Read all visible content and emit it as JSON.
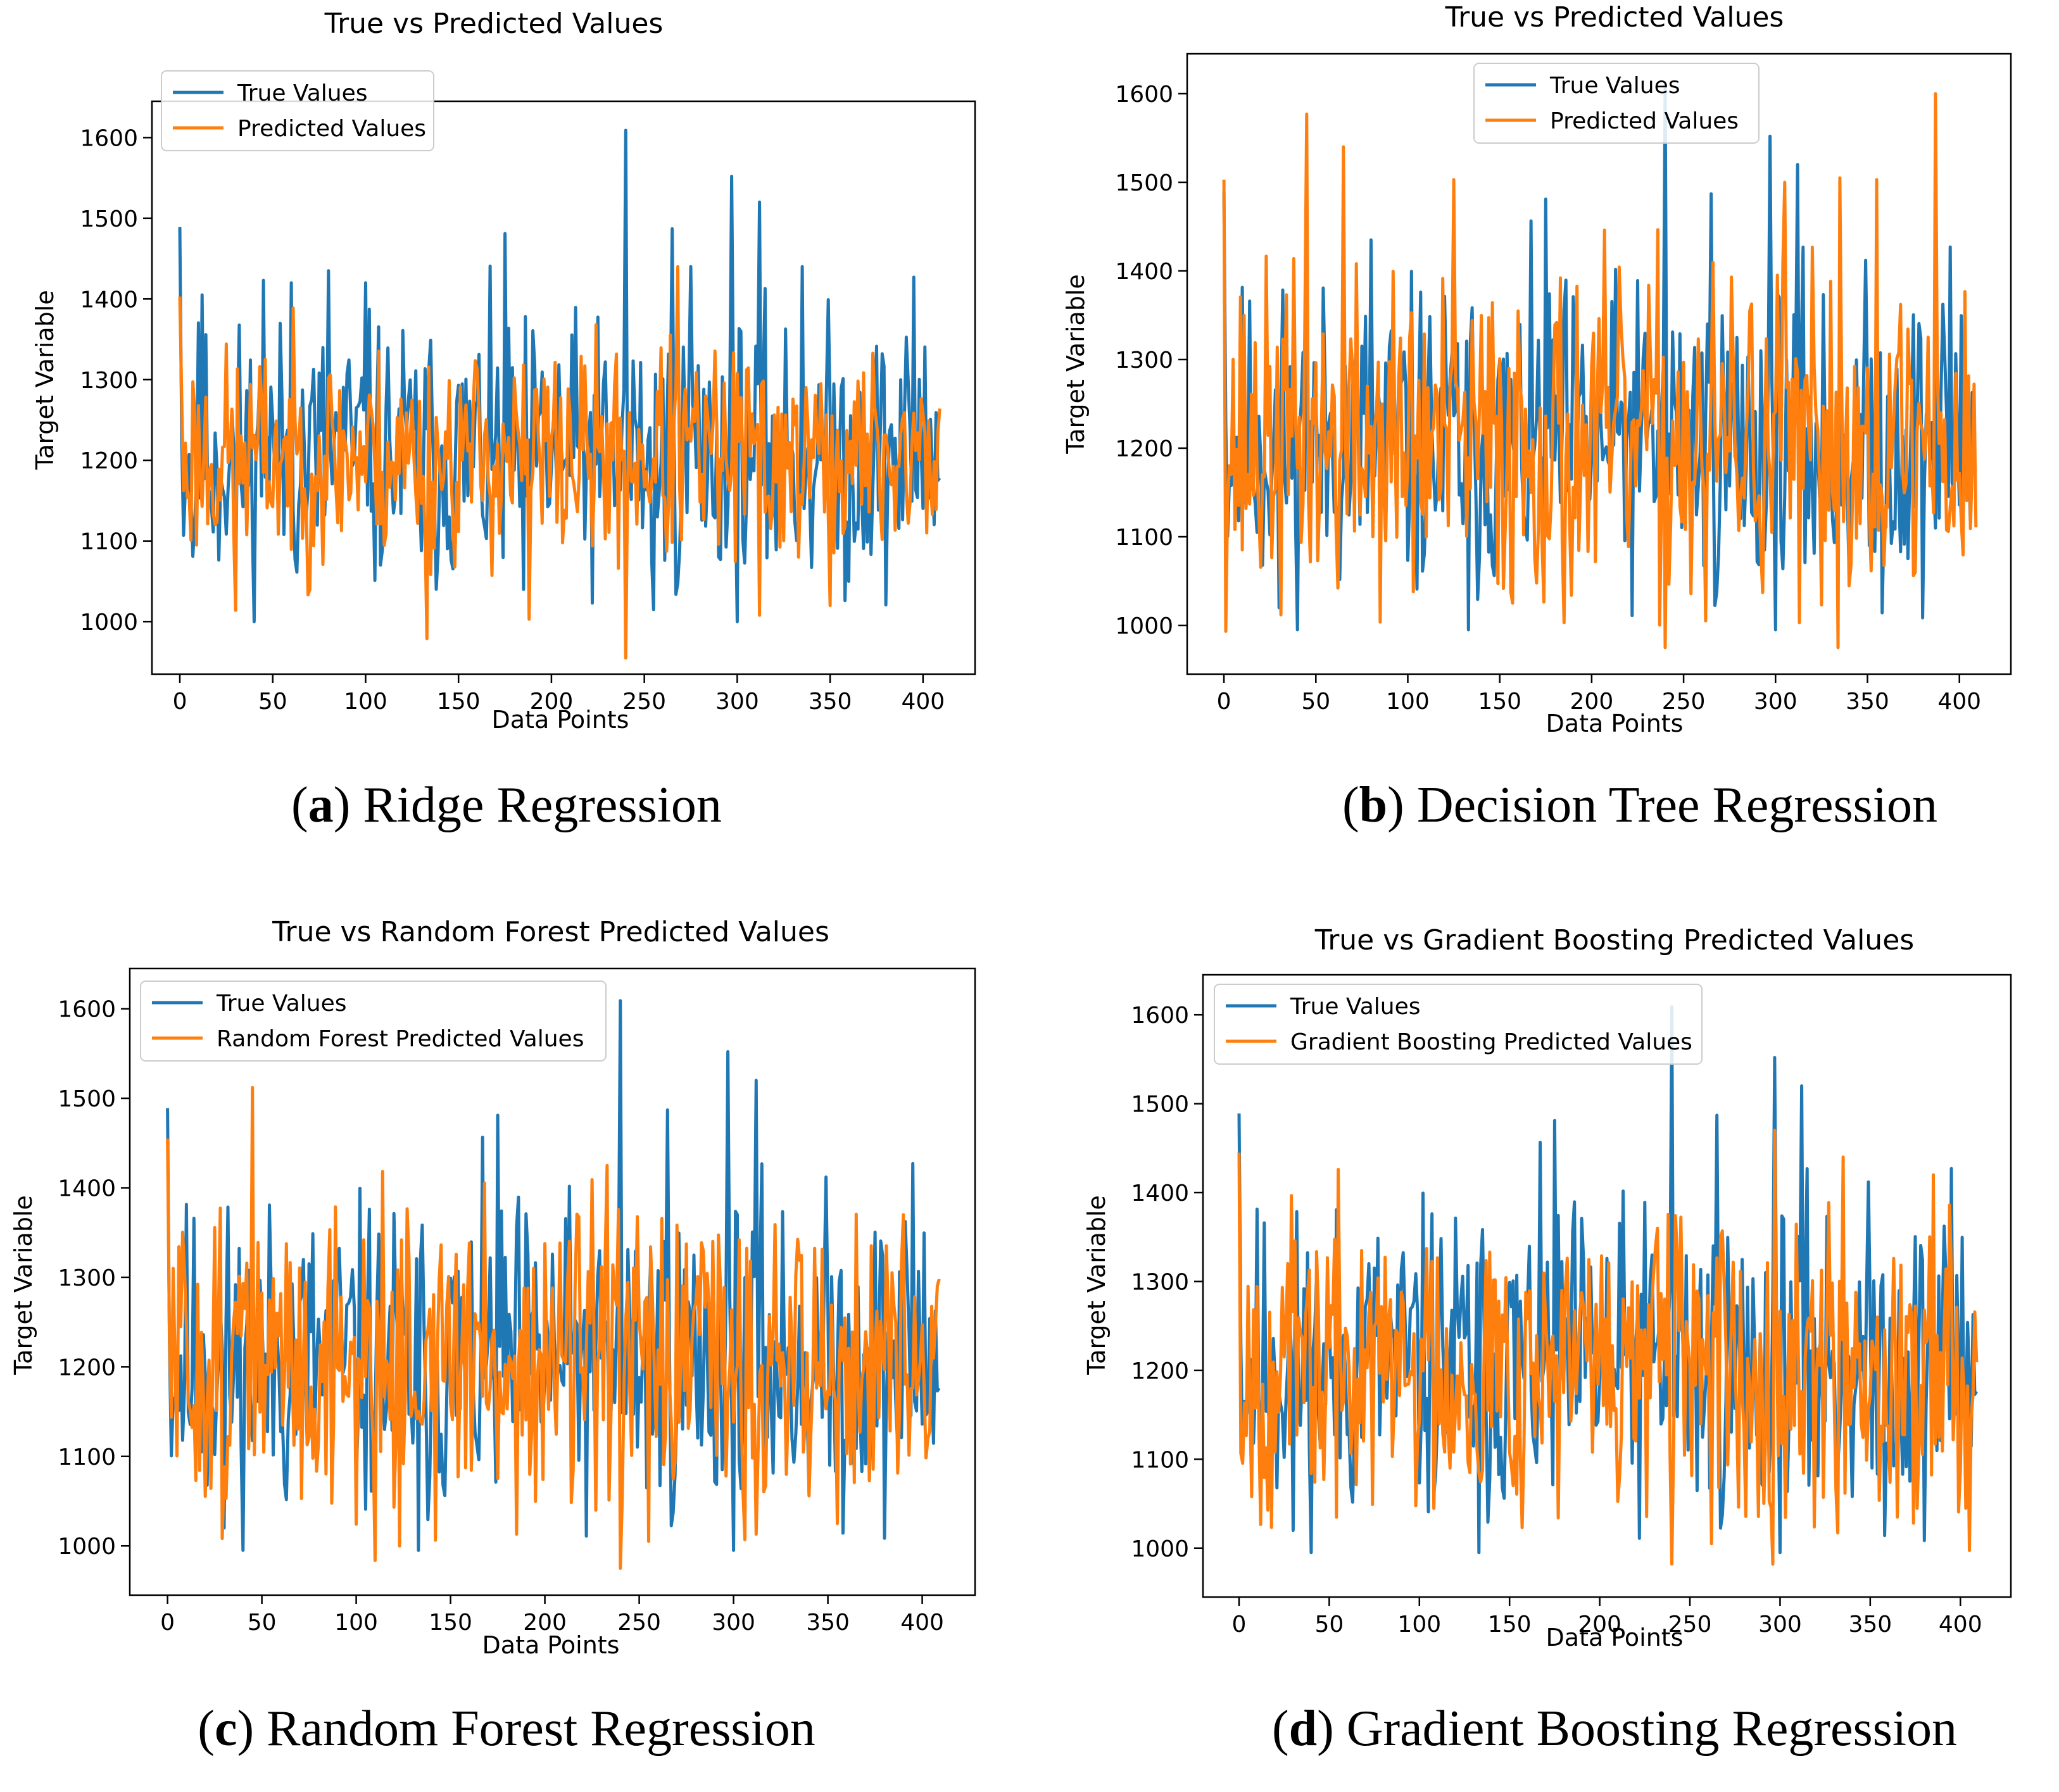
{
  "chart_data": [
    {
      "type": "line",
      "panel": "a",
      "caption_letter": "a",
      "caption_text": "Ridge Regression",
      "title": "True vs Predicted Values",
      "xlabel": "Data Points",
      "ylabel": "Target Variable",
      "xlim": [
        -15,
        428
      ],
      "ylim": [
        935,
        1645
      ],
      "xticks": [
        0,
        50,
        100,
        150,
        200,
        250,
        300,
        350,
        400
      ],
      "yticks": [
        1000,
        1100,
        1200,
        1300,
        1400,
        1500,
        1600
      ],
      "legend": [
        "True Values",
        "Predicted Values"
      ],
      "legend_position": "top-left",
      "series": [
        {
          "name": "True Values",
          "color": "#1f77b4",
          "n": 410,
          "min": 1000,
          "max": 1609,
          "mean": 1205,
          "spread": 75,
          "seed": 11,
          "spikes": [
            [
              0,
              1489
            ],
            [
              7,
              1081
            ],
            [
              12,
              1405
            ],
            [
              30,
              1030
            ],
            [
              45,
              1423
            ],
            [
              60,
              1420
            ],
            [
              80,
              1435
            ],
            [
              100,
              1420
            ],
            [
              130,
              1088
            ],
            [
              175,
              1481
            ],
            [
              185,
              1040
            ],
            [
              240,
              1609
            ],
            [
              255,
              1015
            ],
            [
              265,
              1487
            ],
            [
              275,
              1440
            ],
            [
              297,
              1552
            ],
            [
              312,
              1520
            ],
            [
              335,
              1440
            ],
            [
              360,
              1050
            ],
            [
              395,
              1427
            ]
          ]
        },
        {
          "name": "Predicted Values",
          "color": "#ff7f0e",
          "n": 410,
          "min": 955,
          "max": 1440,
          "mean": 1205,
          "spread": 60,
          "seed": 23,
          "spikes": [
            [
              0,
              1403
            ],
            [
              30,
              1014
            ],
            [
              70,
              1040
            ],
            [
              133,
              979
            ],
            [
              188,
              1003
            ],
            [
              240,
              955
            ],
            [
              268,
              1440
            ],
            [
              312,
              1008
            ],
            [
              350,
              1020
            ]
          ]
        }
      ]
    },
    {
      "type": "line",
      "panel": "b",
      "caption_letter": "b",
      "caption_text": "Decision Tree Regression",
      "title": "True vs Predicted Values",
      "xlabel": "Data Points",
      "ylabel": "Target Variable",
      "xlim": [
        -20,
        428
      ],
      "ylim": [
        945,
        1645
      ],
      "xticks": [
        0,
        50,
        100,
        150,
        200,
        250,
        300,
        350,
        400
      ],
      "yticks": [
        1000,
        1100,
        1200,
        1300,
        1400,
        1500,
        1600
      ],
      "legend": [
        "True Values",
        "Predicted Values"
      ],
      "legend_position": "top-center",
      "series": [
        {
          "name": "True Values",
          "color": "#1f77b4",
          "n": 410,
          "min": 995,
          "max": 1609,
          "mean": 1205,
          "spread": 80,
          "seed": 11,
          "spikes": [
            [
              0,
              1489
            ],
            [
              30,
              1020
            ],
            [
              45,
              1425
            ],
            [
              80,
              1435
            ],
            [
              133,
              995
            ],
            [
              175,
              1481
            ],
            [
              240,
              1609
            ],
            [
              265,
              1487
            ],
            [
              297,
              1552
            ],
            [
              312,
              1520
            ],
            [
              395,
              1427
            ]
          ]
        },
        {
          "name": "Predicted Values",
          "color": "#ff7f0e",
          "n": 410,
          "min": 975,
          "max": 1600,
          "mean": 1205,
          "spread": 85,
          "seed": 37,
          "spikes": [
            [
              0,
              1503
            ],
            [
              45,
              1577
            ],
            [
              65,
              1540
            ],
            [
              125,
              1503
            ],
            [
              185,
              1003
            ],
            [
              240,
              975
            ],
            [
              262,
              1005
            ],
            [
              305,
              1500
            ],
            [
              313,
              1003
            ],
            [
              335,
              1505
            ],
            [
              355,
              1503
            ],
            [
              387,
              1600
            ]
          ]
        }
      ]
    },
    {
      "type": "line",
      "panel": "c",
      "caption_letter": "c",
      "caption_text": "Random Forest Regression",
      "title": "True vs Random Forest Predicted Values",
      "xlabel": "Data Points",
      "ylabel": "Target Variable",
      "xlim": [
        -20,
        428
      ],
      "ylim": [
        945,
        1645
      ],
      "xticks": [
        0,
        50,
        100,
        150,
        200,
        250,
        300,
        350,
        400
      ],
      "yticks": [
        1000,
        1100,
        1200,
        1300,
        1400,
        1500,
        1600
      ],
      "legend": [
        "True Values",
        "Random Forest Predicted Values"
      ],
      "legend_position": "top-left",
      "series": [
        {
          "name": "True Values",
          "color": "#1f77b4",
          "n": 410,
          "min": 995,
          "max": 1609,
          "mean": 1205,
          "spread": 80,
          "seed": 11,
          "spikes": [
            [
              0,
              1489
            ],
            [
              30,
              1020
            ],
            [
              133,
              995
            ],
            [
              175,
              1481
            ],
            [
              240,
              1609
            ],
            [
              265,
              1487
            ],
            [
              297,
              1552
            ],
            [
              312,
              1520
            ],
            [
              395,
              1427
            ]
          ]
        },
        {
          "name": "Random Forest Predicted Values",
          "color": "#ff7f0e",
          "n": 410,
          "min": 975,
          "max": 1512,
          "mean": 1205,
          "spread": 78,
          "seed": 51,
          "spikes": [
            [
              0,
              1455
            ],
            [
              45,
              1512
            ],
            [
              185,
              1013
            ],
            [
              240,
              975
            ],
            [
              255,
              1005
            ],
            [
              312,
              1013
            ],
            [
              355,
              1025
            ]
          ]
        }
      ]
    },
    {
      "type": "line",
      "panel": "d",
      "caption_letter": "d",
      "caption_text": "Gradient Boosting Regression",
      "title": "True vs Gradient Boosting Predicted Values",
      "xlabel": "Data Points",
      "ylabel": "Target Variable",
      "xlim": [
        -20,
        428
      ],
      "ylim": [
        945,
        1645
      ],
      "xticks": [
        0,
        50,
        100,
        150,
        200,
        250,
        300,
        350,
        400
      ],
      "yticks": [
        1000,
        1100,
        1200,
        1300,
        1400,
        1500,
        1600
      ],
      "legend": [
        "True Values",
        "Gradient Boosting Predicted Values"
      ],
      "legend_position": "top-left",
      "series": [
        {
          "name": "True Values",
          "color": "#1f77b4",
          "n": 410,
          "min": 995,
          "max": 1609,
          "mean": 1205,
          "spread": 80,
          "seed": 11,
          "spikes": [
            [
              0,
              1489
            ],
            [
              30,
              1020
            ],
            [
              133,
              995
            ],
            [
              175,
              1481
            ],
            [
              240,
              1609
            ],
            [
              265,
              1487
            ],
            [
              297,
              1552
            ],
            [
              312,
              1520
            ],
            [
              395,
              1427
            ]
          ]
        },
        {
          "name": "Gradient Boosting Predicted Values",
          "color": "#ff7f0e",
          "n": 410,
          "min": 982,
          "max": 1470,
          "mean": 1205,
          "spread": 75,
          "seed": 67,
          "spikes": [
            [
              0,
              1445
            ],
            [
              240,
              982
            ],
            [
              262,
              1005
            ],
            [
              297,
              1470
            ],
            [
              335,
              1440
            ],
            [
              385,
              1420
            ]
          ]
        }
      ]
    }
  ]
}
